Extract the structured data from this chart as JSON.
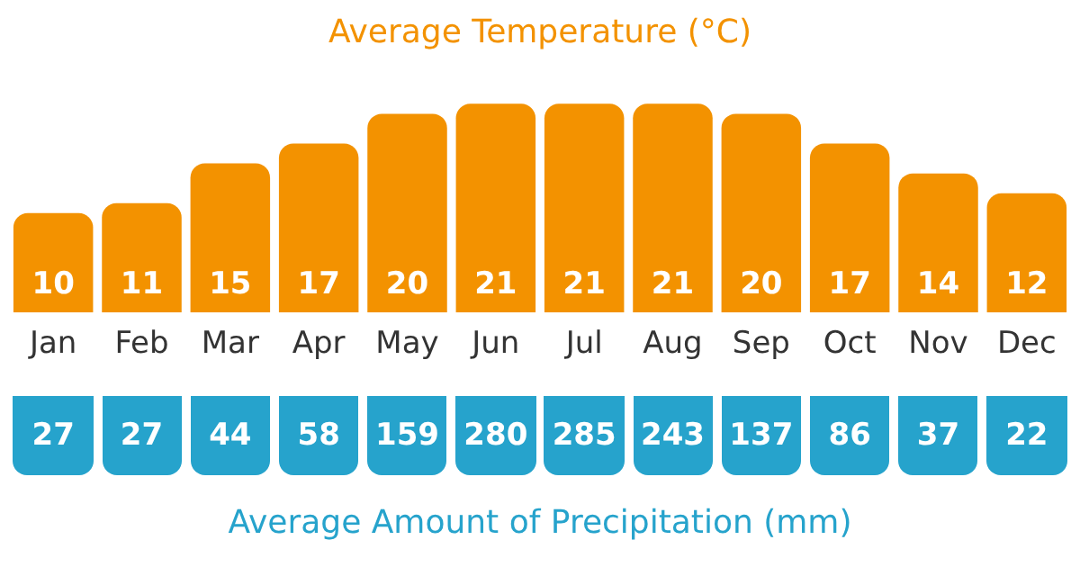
{
  "chart_data": [
    {
      "type": "bar",
      "title": "Average Temperature (°C)",
      "categories": [
        "Jan",
        "Feb",
        "Mar",
        "Apr",
        "May",
        "Jun",
        "Jul",
        "Aug",
        "Sep",
        "Oct",
        "Nov",
        "Dec"
      ],
      "values": [
        10,
        11,
        15,
        17,
        20,
        21,
        21,
        21,
        20,
        17,
        14,
        12
      ],
      "color": "#f39200",
      "tick_labels": "x",
      "grid": false,
      "legend": false,
      "data_labels": true
    },
    {
      "type": "other",
      "title": "Average Amount of Precipitation (mm)",
      "values": [
        27,
        27,
        44,
        58,
        159,
        280,
        285,
        243,
        137,
        86,
        37,
        22
      ],
      "color": "#26a3cc",
      "data_labels": true
    }
  ]
}
